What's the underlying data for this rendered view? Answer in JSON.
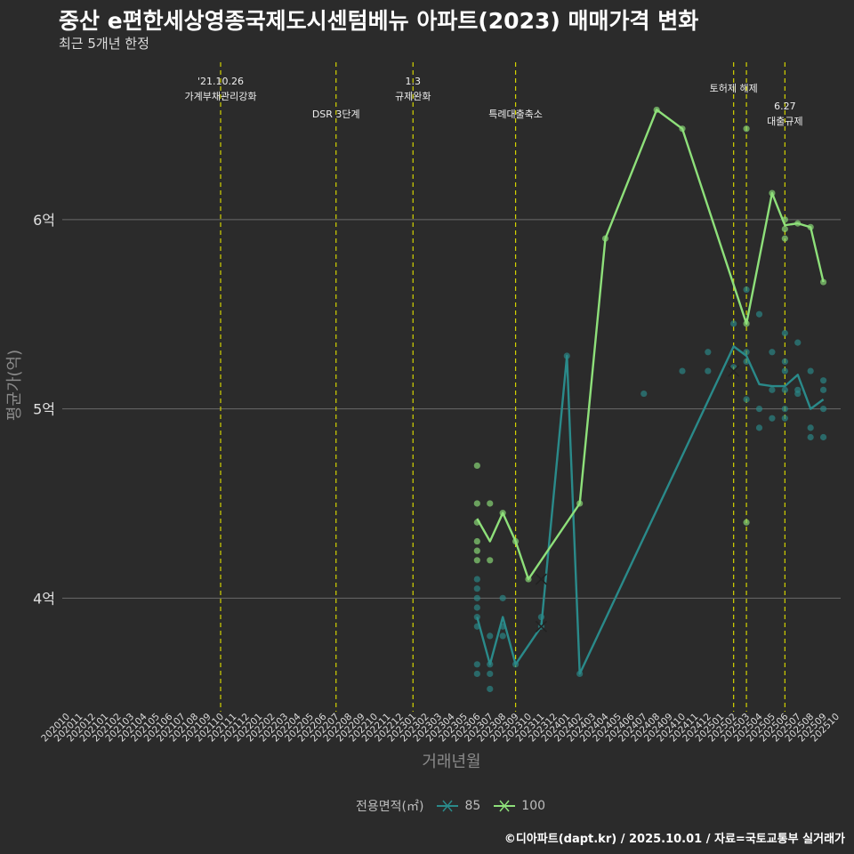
{
  "title": "중산 e편한세상영종국제도시센텀베뉴 아파트(2023) 매매가격 변화",
  "subtitle": "최근 5개년 한정",
  "caption": "©디아파트(dapt.kr) / 2025.10.01 / 자료=국토교통부 실거래가",
  "legend": {
    "title": "전용면적(㎡)",
    "items": [
      {
        "label": "85",
        "color": "#2a8a8a"
      },
      {
        "label": "100",
        "color": "#8ee07a"
      }
    ]
  },
  "chart_data": {
    "type": "line",
    "title": "중산 e편한세상영종국제도시센텀베뉴 아파트(2023) 매매가격 변화",
    "xlabel": "거래년월",
    "ylabel": "평균가(억)",
    "categories": [
      "202010",
      "202011",
      "202012",
      "202101",
      "202102",
      "202103",
      "202104",
      "202105",
      "202106",
      "202107",
      "202108",
      "202109",
      "202110",
      "202111",
      "202112",
      "202201",
      "202202",
      "202203",
      "202204",
      "202205",
      "202206",
      "202207",
      "202208",
      "202209",
      "202210",
      "202211",
      "202212",
      "202301",
      "202302",
      "202303",
      "202304",
      "202305",
      "202306",
      "202307",
      "202308",
      "202309",
      "202310",
      "202311",
      "202312",
      "202401",
      "202402",
      "202403",
      "202404",
      "202405",
      "202406",
      "202407",
      "202408",
      "202409",
      "202410",
      "202411",
      "202412",
      "202501",
      "202502",
      "202503",
      "202504",
      "202505",
      "202506",
      "202507",
      "202508",
      "202509",
      "202510"
    ],
    "ylim": [
      3.4,
      6.85
    ],
    "yticks": [
      4,
      5,
      6
    ],
    "ytick_labels": [
      "4억",
      "5억",
      "6억"
    ],
    "series": [
      {
        "name": "85",
        "color": "#2a8a8a",
        "points": [
          [
            "202306",
            3.9
          ],
          [
            "202307",
            3.65
          ],
          [
            "202308",
            3.9
          ],
          [
            "202309",
            3.65
          ],
          [
            "202311",
            3.85
          ],
          [
            "202401",
            5.28
          ],
          [
            "202402",
            3.6
          ],
          [
            "202502",
            5.33
          ],
          [
            "202503",
            5.28
          ],
          [
            "202504",
            5.13
          ],
          [
            "202505",
            5.12
          ],
          [
            "202506",
            5.12
          ],
          [
            "202507",
            5.18
          ],
          [
            "202508",
            5.0
          ],
          [
            "202509",
            5.05
          ]
        ]
      },
      {
        "name": "100",
        "color": "#8ee07a",
        "points": [
          [
            "202306",
            4.42
          ],
          [
            "202307",
            4.3
          ],
          [
            "202308",
            4.45
          ],
          [
            "202309",
            4.3
          ],
          [
            "202310",
            4.1
          ],
          [
            "202402",
            4.5
          ],
          [
            "202404",
            5.9
          ],
          [
            "202408",
            6.58
          ],
          [
            "202410",
            6.48
          ],
          [
            "202503",
            5.45
          ],
          [
            "202505",
            6.14
          ],
          [
            "202506",
            5.97
          ],
          [
            "202507",
            5.98
          ],
          [
            "202508",
            5.96
          ],
          [
            "202509",
            5.67
          ]
        ]
      }
    ],
    "scatter": [
      {
        "series": "85",
        "x": "202306",
        "y": 4.1
      },
      {
        "series": "85",
        "x": "202306",
        "y": 4.05
      },
      {
        "series": "85",
        "x": "202306",
        "y": 4.0
      },
      {
        "series": "85",
        "x": "202306",
        "y": 3.95
      },
      {
        "series": "85",
        "x": "202306",
        "y": 3.9
      },
      {
        "series": "85",
        "x": "202306",
        "y": 3.85
      },
      {
        "series": "85",
        "x": "202306",
        "y": 3.65
      },
      {
        "series": "85",
        "x": "202306",
        "y": 3.6
      },
      {
        "series": "85",
        "x": "202307",
        "y": 3.8
      },
      {
        "series": "85",
        "x": "202307",
        "y": 3.65
      },
      {
        "series": "85",
        "x": "202307",
        "y": 3.6
      },
      {
        "series": "85",
        "x": "202307",
        "y": 3.52
      },
      {
        "series": "85",
        "x": "202308",
        "y": 4.0
      },
      {
        "series": "85",
        "x": "202308",
        "y": 3.85
      },
      {
        "series": "85",
        "x": "202308",
        "y": 3.8
      },
      {
        "series": "85",
        "x": "202309",
        "y": 3.65
      },
      {
        "series": "85",
        "x": "202311",
        "y": 3.9
      },
      {
        "series": "85",
        "x": "202311",
        "y": 3.85
      },
      {
        "series": "85",
        "x": "202401",
        "y": 5.28
      },
      {
        "series": "85",
        "x": "202402",
        "y": 3.6
      },
      {
        "series": "85",
        "x": "202407",
        "y": 5.08
      },
      {
        "series": "85",
        "x": "202410",
        "y": 5.2
      },
      {
        "series": "85",
        "x": "202412",
        "y": 5.3
      },
      {
        "series": "85",
        "x": "202412",
        "y": 5.2
      },
      {
        "series": "85",
        "x": "202502",
        "y": 5.45
      },
      {
        "series": "85",
        "x": "202502",
        "y": 5.22
      },
      {
        "series": "85",
        "x": "202503",
        "y": 5.63
      },
      {
        "series": "85",
        "x": "202503",
        "y": 5.3
      },
      {
        "series": "85",
        "x": "202503",
        "y": 5.25
      },
      {
        "series": "85",
        "x": "202503",
        "y": 5.05
      },
      {
        "series": "85",
        "x": "202504",
        "y": 5.5
      },
      {
        "series": "85",
        "x": "202504",
        "y": 5.0
      },
      {
        "series": "85",
        "x": "202504",
        "y": 4.9
      },
      {
        "series": "85",
        "x": "202505",
        "y": 5.3
      },
      {
        "series": "85",
        "x": "202505",
        "y": 5.1
      },
      {
        "series": "85",
        "x": "202505",
        "y": 4.95
      },
      {
        "series": "85",
        "x": "202506",
        "y": 5.4
      },
      {
        "series": "85",
        "x": "202506",
        "y": 5.25
      },
      {
        "series": "85",
        "x": "202506",
        "y": 5.2
      },
      {
        "series": "85",
        "x": "202506",
        "y": 5.1
      },
      {
        "series": "85",
        "x": "202506",
        "y": 5.0
      },
      {
        "series": "85",
        "x": "202506",
        "y": 4.95
      },
      {
        "series": "85",
        "x": "202507",
        "y": 5.35
      },
      {
        "series": "85",
        "x": "202507",
        "y": 5.1
      },
      {
        "series": "85",
        "x": "202507",
        "y": 5.08
      },
      {
        "series": "85",
        "x": "202508",
        "y": 5.2
      },
      {
        "series": "85",
        "x": "202508",
        "y": 4.9
      },
      {
        "series": "85",
        "x": "202508",
        "y": 4.85
      },
      {
        "series": "85",
        "x": "202509",
        "y": 5.15
      },
      {
        "series": "85",
        "x": "202509",
        "y": 5.1
      },
      {
        "series": "85",
        "x": "202509",
        "y": 5.0
      },
      {
        "series": "85",
        "x": "202509",
        "y": 4.85
      },
      {
        "series": "100",
        "x": "202306",
        "y": 4.7
      },
      {
        "series": "100",
        "x": "202306",
        "y": 4.5
      },
      {
        "series": "100",
        "x": "202306",
        "y": 4.4
      },
      {
        "series": "100",
        "x": "202306",
        "y": 4.3
      },
      {
        "series": "100",
        "x": "202306",
        "y": 4.25
      },
      {
        "series": "100",
        "x": "202306",
        "y": 4.2
      },
      {
        "series": "100",
        "x": "202307",
        "y": 4.5
      },
      {
        "series": "100",
        "x": "202307",
        "y": 4.2
      },
      {
        "series": "100",
        "x": "202308",
        "y": 4.45
      },
      {
        "series": "100",
        "x": "202309",
        "y": 4.3
      },
      {
        "series": "100",
        "x": "202310",
        "y": 4.1
      },
      {
        "series": "100",
        "x": "202402",
        "y": 4.5
      },
      {
        "series": "100",
        "x": "202404",
        "y": 5.9
      },
      {
        "series": "100",
        "x": "202408",
        "y": 6.58
      },
      {
        "series": "100",
        "x": "202410",
        "y": 6.48
      },
      {
        "series": "100",
        "x": "202503",
        "y": 6.48
      },
      {
        "series": "100",
        "x": "202503",
        "y": 5.45
      },
      {
        "series": "100",
        "x": "202503",
        "y": 4.4
      },
      {
        "series": "100",
        "x": "202505",
        "y": 6.14
      },
      {
        "series": "100",
        "x": "202506",
        "y": 6.0
      },
      {
        "series": "100",
        "x": "202506",
        "y": 5.95
      },
      {
        "series": "100",
        "x": "202506",
        "y": 5.9
      },
      {
        "series": "100",
        "x": "202507",
        "y": 5.98
      },
      {
        "series": "100",
        "x": "202508",
        "y": 5.96
      },
      {
        "series": "100",
        "x": "202509",
        "y": 5.67
      }
    ],
    "cross_markers": [
      {
        "series": "85",
        "x": "202311",
        "y": 3.85
      },
      {
        "series": "85",
        "x": "202502",
        "y": 5.2
      },
      {
        "series": "100",
        "x": "202311",
        "y": 4.1
      }
    ],
    "annotations": [
      {
        "x": "202110",
        "lines": [
          "'21.10.26",
          "가계부채관리강화"
        ],
        "level": 0
      },
      {
        "x": "202207",
        "lines": [
          "DSR 3단계"
        ],
        "level": 2
      },
      {
        "x": "202301",
        "lines": [
          "1.3",
          "규제완화"
        ],
        "level": 0
      },
      {
        "x": "202309",
        "lines": [
          "특례대출축소"
        ],
        "level": 2
      },
      {
        "x": "202502",
        "lines": [
          "토허제 해제"
        ],
        "level": 1
      },
      {
        "x": "202503",
        "lines": [],
        "level": 1
      },
      {
        "x": "202506",
        "lines": [
          "6.27",
          "대출규제"
        ],
        "level": 3
      }
    ]
  }
}
